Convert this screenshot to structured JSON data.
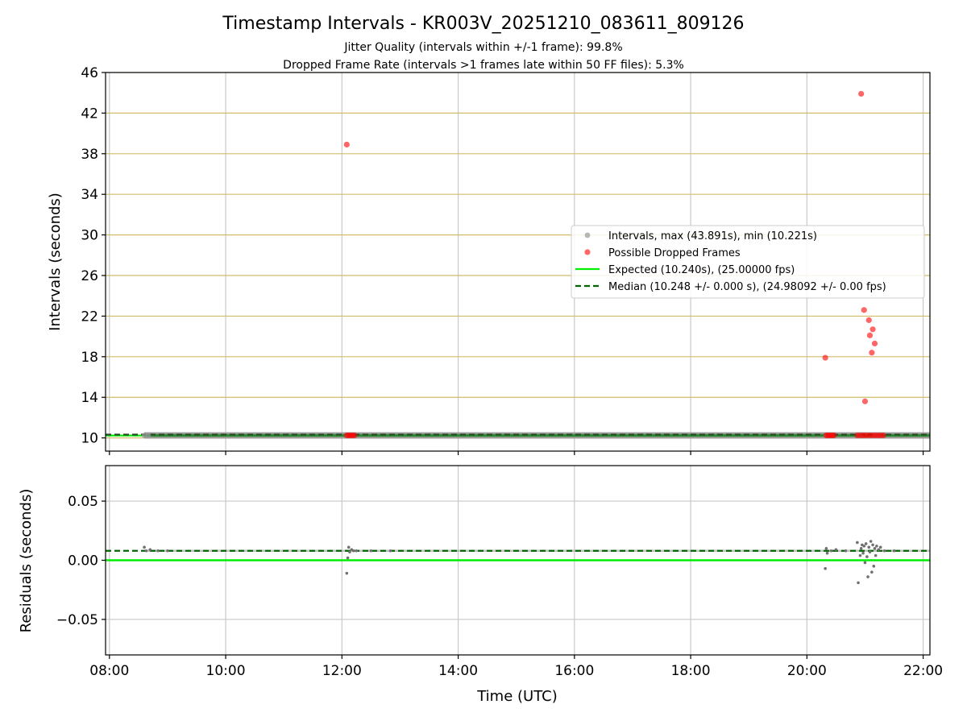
{
  "title": "Timestamp Intervals - KR003V_20251210_083611_809126",
  "subtitle_lines": [
    "Jitter Quality (intervals within +/-1 frame): 99.8%",
    "Dropped Frame Rate (intervals >1 frames late within 50 FF files): 5.3%"
  ],
  "xlabel": "Time (UTC)",
  "colors": {
    "intervals": "#999999",
    "dropped": "#ff0000",
    "expected": "#00ee00",
    "median": "#006400",
    "residual_points": "#707070",
    "grid": "#c8c8c8",
    "hline_grid": "#d2bc6a"
  },
  "chart_data": [
    {
      "type": "scatter",
      "ylabel": "Intervals (seconds)",
      "xlim": [
        "07:56",
        "22:07"
      ],
      "ylim": [
        8.7,
        46
      ],
      "yticks": [
        10,
        14,
        18,
        22,
        26,
        30,
        34,
        38,
        42,
        46
      ],
      "ytick_labels": [
        "10",
        "14",
        "18",
        "22",
        "26",
        "30",
        "34",
        "38",
        "42",
        "46"
      ],
      "xticks": [
        "08:00",
        "10:00",
        "12:00",
        "14:00",
        "16:00",
        "18:00",
        "20:00",
        "22:00"
      ],
      "grid": {
        "vertical": true,
        "horizontal": true
      },
      "legend_position": "right",
      "expected_line_value": 10.24,
      "median_line_value": 10.248,
      "intervals_band": {
        "start": "08:36",
        "end": "22:07",
        "value": 10.248
      },
      "series": [
        {
          "name": "Intervals, max (43.891s), min (10.221s)",
          "kind": "scatter",
          "x": [
            "08:36",
            "08:40",
            "12:06",
            "12:10",
            "20:20",
            "20:25",
            "20:55",
            "21:10",
            "21:15"
          ],
          "y": [
            10.25,
            10.25,
            10.25,
            10.25,
            10.25,
            10.25,
            10.25,
            10.25,
            10.25
          ]
        },
        {
          "name": "Possible Dropped Frames",
          "kind": "scatter",
          "x": [
            "12:05",
            "20:19",
            "20:56",
            "20:59",
            "21:00",
            "21:04",
            "21:05",
            "21:07",
            "21:08",
            "21:10",
            "12:05",
            "12:07",
            "12:09",
            "12:11",
            "12:13",
            "20:20",
            "20:22",
            "20:24",
            "20:26",
            "20:28",
            "20:52",
            "20:55",
            "20:58",
            "21:01",
            "21:04",
            "21:07",
            "21:10",
            "21:13",
            "21:16",
            "21:19"
          ],
          "y": [
            38.9,
            17.9,
            43.9,
            22.6,
            13.6,
            21.6,
            20.1,
            18.4,
            20.7,
            19.3,
            10.25,
            10.25,
            10.25,
            10.25,
            10.25,
            10.25,
            10.25,
            10.25,
            10.25,
            10.25,
            10.25,
            10.25,
            10.25,
            10.25,
            10.25,
            10.25,
            10.25,
            10.25,
            10.25,
            10.25
          ]
        },
        {
          "name": "Expected (10.240s), (25.00000 fps)",
          "kind": "hline",
          "value": 10.24
        },
        {
          "name": "Median (10.248 +/- 0.000 s), (24.98092 +/- 0.00 fps)",
          "kind": "hline-dashed",
          "value": 10.248
        }
      ]
    },
    {
      "type": "scatter",
      "ylabel": "Residuals (seconds)",
      "xlim": [
        "07:56",
        "22:07"
      ],
      "ylim": [
        -0.08,
        0.08
      ],
      "yticks": [
        0.05,
        0.0,
        -0.05
      ],
      "ytick_labels": [
        "0.05",
        "0.00",
        "−0.05"
      ],
      "xticks": [
        "08:00",
        "10:00",
        "12:00",
        "14:00",
        "16:00",
        "18:00",
        "20:00",
        "22:00"
      ],
      "xtick_labels": [
        "08:00",
        "10:00",
        "12:00",
        "14:00",
        "16:00",
        "18:00",
        "20:00",
        "22:00"
      ],
      "grid": {
        "vertical": true,
        "horizontal": true
      },
      "expected_line_value": 0.0,
      "median_line_value": 0.008,
      "series": [
        {
          "kind": "scatter",
          "x": [
            "08:36",
            "08:38",
            "08:42",
            "08:50",
            "09:00",
            "12:05",
            "12:06",
            "12:07",
            "12:08",
            "12:10",
            "12:12",
            "12:15",
            "12:30",
            "12:50",
            "20:19",
            "20:20",
            "20:21",
            "20:25",
            "20:30",
            "20:40",
            "20:52",
            "20:53",
            "20:55",
            "20:56",
            "20:57",
            "20:58",
            "20:59",
            "21:00",
            "21:01",
            "21:02",
            "21:03",
            "21:04",
            "21:05",
            "21:06",
            "21:07",
            "21:08",
            "21:09",
            "21:10",
            "21:11",
            "21:12",
            "21:14",
            "21:16",
            "21:20",
            "21:30"
          ],
          "y": [
            0.011,
            0.008,
            0.009,
            0.008,
            0.008,
            -0.011,
            0.002,
            0.011,
            0.007,
            0.009,
            0.008,
            0.008,
            0.008,
            0.008,
            -0.007,
            0.01,
            0.006,
            0.008,
            0.009,
            0.008,
            0.015,
            -0.019,
            0.004,
            0.01,
            0.013,
            0.006,
            0.012,
            -0.002,
            0.014,
            0.003,
            -0.014,
            0.011,
            0.007,
            0.016,
            -0.01,
            0.013,
            -0.005,
            0.01,
            0.004,
            0.012,
            0.009,
            0.011,
            0.008,
            0.008
          ]
        }
      ]
    }
  ]
}
